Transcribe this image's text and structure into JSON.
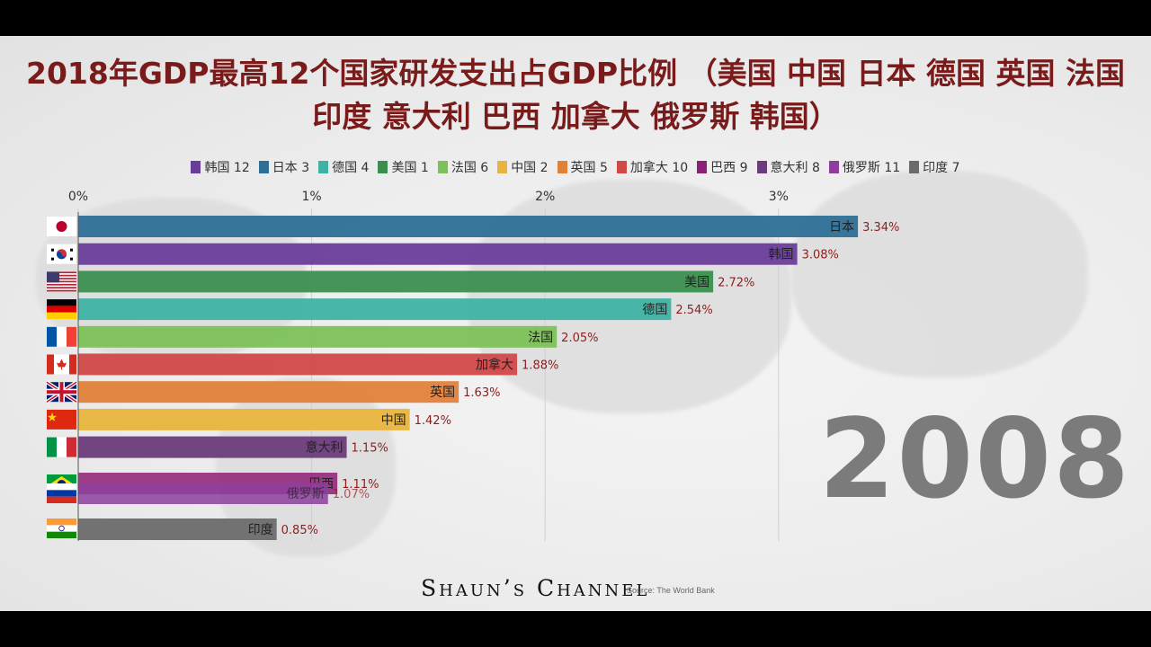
{
  "title": "2018年GDP最高12个国家研发支出占GDP比例 （美国 中国 日本 德国 英国 法国 印度 意大利 巴西 加拿大 俄罗斯 韩国）",
  "year": "2008",
  "channel": "Shaun’s Channel",
  "source": "Source: The World Bank",
  "legend": [
    {
      "label": "韩国 12",
      "color": "#6a3d9a"
    },
    {
      "label": "日本 3",
      "color": "#2e6f96"
    },
    {
      "label": "德国 4",
      "color": "#3fb2a4"
    },
    {
      "label": "美国 1",
      "color": "#3a8f4e"
    },
    {
      "label": "法国 6",
      "color": "#7cc157"
    },
    {
      "label": "中国 2",
      "color": "#e8b43c"
    },
    {
      "label": "英国 5",
      "color": "#e0813a"
    },
    {
      "label": "加拿大 10",
      "color": "#d04848"
    },
    {
      "label": "巴西 9",
      "color": "#8e1f77"
    },
    {
      "label": "意大利 8",
      "color": "#6a3d7a"
    },
    {
      "label": "俄罗斯 11",
      "color": "#8e3f9e"
    },
    {
      "label": "印度 7",
      "color": "#6b6b6b"
    }
  ],
  "chart_data": {
    "type": "bar",
    "orientation": "horizontal",
    "x_ticks": [
      "0%",
      "1%",
      "2%",
      "3%"
    ],
    "xlim": [
      0,
      3.35
    ],
    "bars": [
      {
        "name": "日本",
        "value": 3.34,
        "value_label": "3.34%",
        "color": "#2e6f96",
        "flag": "jp"
      },
      {
        "name": "韩国",
        "value": 3.08,
        "value_label": "3.08%",
        "color": "#6a3d9a",
        "flag": "kr"
      },
      {
        "name": "美国",
        "value": 2.72,
        "value_label": "2.72%",
        "color": "#3a8f4e",
        "flag": "us"
      },
      {
        "name": "德国",
        "value": 2.54,
        "value_label": "2.54%",
        "color": "#3fb2a4",
        "flag": "de"
      },
      {
        "name": "法国",
        "value": 2.05,
        "value_label": "2.05%",
        "color": "#7cc157",
        "flag": "fr"
      },
      {
        "name": "加拿大",
        "value": 1.88,
        "value_label": "1.88%",
        "color": "#d04848",
        "flag": "ca"
      },
      {
        "name": "英国",
        "value": 1.63,
        "value_label": "1.63%",
        "color": "#e0813a",
        "flag": "gb"
      },
      {
        "name": "中国",
        "value": 1.42,
        "value_label": "1.42%",
        "color": "#e8b43c",
        "flag": "cn"
      },
      {
        "name": "意大利",
        "value": 1.15,
        "value_label": "1.15%",
        "color": "#6a3d7a",
        "flag": "it"
      },
      {
        "name": "巴西",
        "value": 1.11,
        "value_label": "1.11%",
        "color": "#8e1f77",
        "flag": "br"
      },
      {
        "name": "俄罗斯",
        "value": 1.07,
        "value_label": "1.07%",
        "color": "#8e3f9e",
        "flag": "ru"
      },
      {
        "name": "印度",
        "value": 0.85,
        "value_label": "0.85%",
        "color": "#6b6b6b",
        "flag": "in"
      }
    ]
  }
}
